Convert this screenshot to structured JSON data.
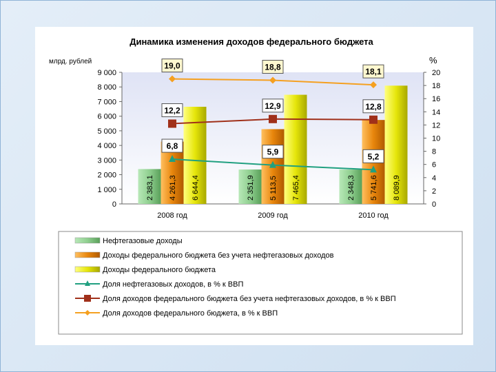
{
  "chart_data": {
    "type": "bar",
    "title": "Динамика изменения доходов федерального бюджета",
    "ylabel": "млрд. рублей",
    "y2label": "%",
    "ylim": [
      0,
      9000
    ],
    "y2lim": [
      0,
      20
    ],
    "yticks": [
      "0",
      "1 000",
      "2 000",
      "3 000",
      "4 000",
      "5 000",
      "6 000",
      "7 000",
      "8 000",
      "9 000"
    ],
    "y2ticks": [
      "0",
      "2",
      "4",
      "6",
      "8",
      "10",
      "12",
      "14",
      "16",
      "18",
      "20"
    ],
    "categories": [
      "2008 год",
      "2009 год",
      "2010 год"
    ],
    "series": [
      {
        "name": "Нефтегазовые доходы",
        "kind": "bar",
        "color": "#8fcf8f",
        "values": [
          2383.1,
          2351.9,
          2348.3
        ],
        "labels": [
          "2 383,1",
          "2 351,9",
          "2 348,3"
        ]
      },
      {
        "name": "Доходы федерального бюджета без учета нефтегазовых доходов",
        "kind": "bar",
        "color": "#e8860c",
        "values": [
          4261.3,
          5113.5,
          5741.6
        ],
        "labels": [
          "4 261,3",
          "5 113,5",
          "5 741,6"
        ]
      },
      {
        "name": "Доходы федерального бюджета",
        "kind": "bar",
        "color": "#e6e60a",
        "values": [
          6644.4,
          7465.4,
          8089.9
        ],
        "labels": [
          "6 644,4",
          "7 465,4",
          "8 089,9"
        ]
      },
      {
        "name": "Доля нефтегазовых  доходов, в % к ВВП",
        "kind": "line",
        "axis": "right",
        "color": "#20a080",
        "marker": "triangle",
        "values": [
          6.8,
          5.9,
          5.2
        ],
        "labels": [
          "6,8",
          "5,9",
          "5,2"
        ]
      },
      {
        "name": "Доля доходов федерального бюджета без учета нефтегазовых доходов, в % к  ВВП",
        "kind": "line",
        "axis": "right",
        "color": "#a0301a",
        "marker": "square",
        "values": [
          12.2,
          12.9,
          12.8
        ],
        "labels": [
          "12,2",
          "12,9",
          "12,8"
        ]
      },
      {
        "name": "Доля доходов федерального бюджета, в % к  ВВП",
        "kind": "line",
        "axis": "right",
        "color": "#f5a020",
        "marker": "diamond",
        "values": [
          19.0,
          18.8,
          18.1
        ],
        "labels": [
          "19,0",
          "18,8",
          "18,1"
        ]
      }
    ],
    "legend_position": "bottom"
  }
}
